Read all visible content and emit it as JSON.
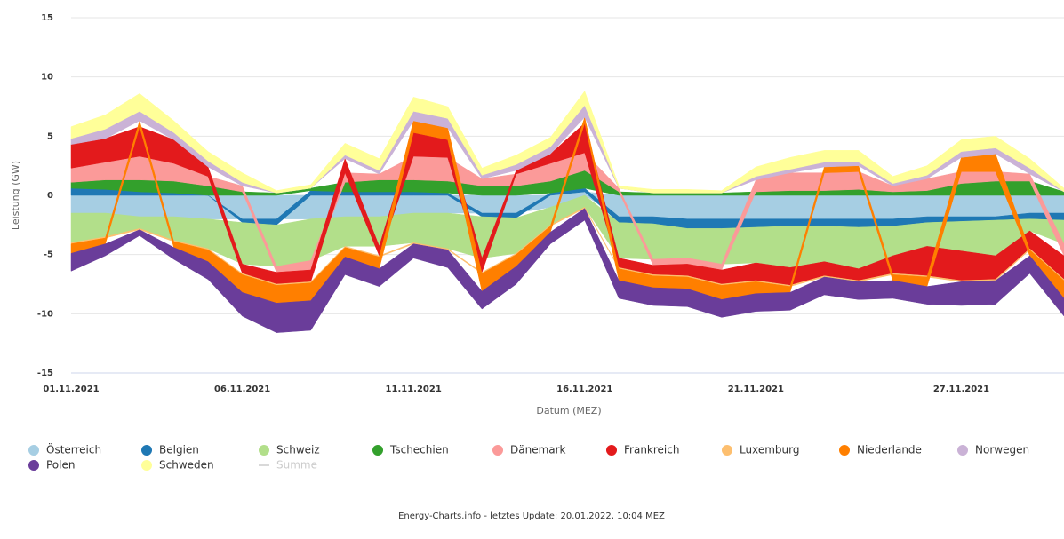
{
  "chart_data": {
    "type": "stacked_area",
    "x_label": "Datum (MEZ)",
    "y_label": "Leistung (GW)",
    "footer": "Energy-Charts.info - letztes Update: 20.01.2022, 10:04 MEZ",
    "x": [
      "01.11.2021",
      "02.11.2021",
      "03.11.2021",
      "04.11.2021",
      "05.11.2021",
      "06.11.2021",
      "07.11.2021",
      "08.11.2021",
      "09.11.2021",
      "10.11.2021",
      "11.11.2021",
      "12.11.2021",
      "13.11.2021",
      "14.11.2021",
      "15.11.2021",
      "16.11.2021",
      "17.11.2021",
      "18.11.2021",
      "19.11.2021",
      "20.11.2021",
      "21.11.2021",
      "22.11.2021",
      "23.11.2021",
      "24.11.2021",
      "25.11.2021",
      "26.11.2021",
      "27.11.2021",
      "28.11.2021",
      "29.11.2021",
      "30.11.2021"
    ],
    "xticks": [
      "01.11.2021",
      "06.11.2021",
      "11.11.2021",
      "16.11.2021",
      "21.11.2021",
      "27.11.2021"
    ],
    "ylim": [
      -15,
      15
    ],
    "yticks": [
      -15,
      -10,
      -5,
      0,
      5,
      10,
      15
    ],
    "grid": true,
    "series": [
      {
        "name": "Österreich",
        "color": "#a6cee3",
        "values": [
          -1.5,
          -1.5,
          -1.8,
          -1.8,
          -2,
          -2,
          -2,
          -2,
          -1.8,
          -1.8,
          -1.5,
          -1.5,
          -1.5,
          -1.5,
          -1,
          0.3,
          -1.8,
          -1.8,
          -2,
          -2,
          -2,
          -2,
          -2,
          -2,
          -2,
          -1.8,
          -1.8,
          -1.8,
          -1.5,
          -1.5
        ]
      },
      {
        "name": "Belgien",
        "color": "#1f78b4",
        "values": [
          0.6,
          0.5,
          0.3,
          0.2,
          0,
          -0.3,
          -0.5,
          0.4,
          0.3,
          0.3,
          0.3,
          0.2,
          -0.3,
          -0.4,
          0.2,
          0.3,
          -0.5,
          -0.6,
          -0.8,
          -0.8,
          -0.7,
          -0.6,
          -0.6,
          -0.7,
          -0.6,
          -0.5,
          -0.4,
          -0.3,
          -0.5,
          -0.6
        ]
      },
      {
        "name": "Schweiz",
        "color": "#b2df8a",
        "values": [
          -2.5,
          -2,
          -1,
          -2,
          -2.5,
          -3.5,
          -3.5,
          -3.5,
          -2.5,
          -2.5,
          -2.5,
          -3,
          -3.5,
          -3,
          -1.5,
          -1,
          -3,
          -3,
          -2.5,
          -3,
          -3,
          -3.5,
          -3,
          -3.5,
          -2.5,
          -2,
          -2.5,
          -3,
          -1,
          -2
        ]
      },
      {
        "name": "Tschechien",
        "color": "#33a02c",
        "values": [
          0.5,
          0.8,
          1,
          1,
          0.8,
          0.3,
          0.2,
          0.2,
          0.8,
          1,
          1,
          1,
          0.8,
          0.8,
          1,
          1.5,
          0.3,
          0.2,
          0.2,
          0.2,
          0.3,
          0.4,
          0.4,
          0.5,
          0.3,
          0.4,
          1,
          1.2,
          1.2,
          0.3
        ]
      },
      {
        "name": "Dänemark",
        "color": "#fb9a99",
        "values": [
          1.2,
          1.5,
          2,
          1.5,
          0.8,
          0.5,
          -0.5,
          -0.8,
          0.8,
          0.5,
          2,
          2,
          0.6,
          1,
          1.5,
          1.5,
          0.3,
          -0.5,
          -0.5,
          -0.5,
          1,
          1.5,
          1.5,
          1.5,
          0.5,
          1,
          1,
          0.8,
          0.6,
          -1
        ]
      },
      {
        "name": "Frankreich",
        "color": "#e31a1c",
        "values": [
          2,
          2,
          2.5,
          2,
          0.8,
          -0.8,
          -1,
          -1,
          1.2,
          -0.8,
          2,
          1.5,
          -1.2,
          0.3,
          0.8,
          2.5,
          -0.8,
          -0.8,
          -1,
          -1.2,
          -1.5,
          -1.5,
          -1.2,
          -1,
          -1.5,
          -2.5,
          -2.5,
          -2,
          -1.5,
          -2
        ]
      },
      {
        "name": "Luxemburg",
        "color": "#fdbf6f",
        "values": [
          -0.1,
          -0.1,
          -0.1,
          -0.1,
          -0.1,
          -0.1,
          -0.1,
          -0.1,
          -0.1,
          -0.1,
          -0.1,
          -0.1,
          -0.1,
          -0.1,
          -0.1,
          -0.1,
          -0.1,
          -0.1,
          -0.1,
          -0.1,
          -0.1,
          -0.1,
          -0.1,
          -0.1,
          -0.1,
          -0.1,
          -0.1,
          -0.1,
          -0.1,
          -0.1
        ]
      },
      {
        "name": "Niederlande",
        "color": "#ff7f00",
        "values": [
          -0.8,
          -0.5,
          0.5,
          -0.5,
          -1,
          -1.5,
          -1.5,
          -1.5,
          -0.8,
          -1,
          1,
          1,
          -1.5,
          -1,
          -0.5,
          0.5,
          -1,
          -1,
          -1,
          -1.2,
          -1,
          -0.5,
          0.5,
          0.5,
          -0.5,
          -0.8,
          1.2,
          1.5,
          -0.5,
          -1.5
        ]
      },
      {
        "name": "Norwegen",
        "color": "#cab2d6",
        "values": [
          0.5,
          0.8,
          0.8,
          0.6,
          0.5,
          0.3,
          0,
          0,
          0.3,
          0.3,
          0.8,
          0.8,
          0.3,
          0.5,
          0.6,
          1,
          0,
          0,
          0,
          0,
          0.3,
          0.3,
          0.4,
          0.3,
          0.2,
          0.3,
          0.5,
          0.5,
          0.5,
          0
        ]
      },
      {
        "name": "Polen",
        "color": "#6a3d9a",
        "values": [
          -1.5,
          -1,
          -0.5,
          -1,
          -1.5,
          -2,
          -2.5,
          -2.5,
          -1.5,
          -1.5,
          -1.2,
          -1.5,
          -1.5,
          -1.5,
          -1,
          -1,
          -1.5,
          -1.5,
          -1.5,
          -1.5,
          -1.5,
          -1.5,
          -1.5,
          -1.5,
          -1.5,
          -1.5,
          -2,
          -2,
          -1.5,
          -1.5
        ]
      },
      {
        "name": "Schweden",
        "color": "#ffff99",
        "values": [
          1,
          1.2,
          1.5,
          1,
          0.8,
          0.8,
          0.2,
          0.3,
          1,
          1,
          1.2,
          1,
          0.6,
          0.8,
          0.8,
          1.2,
          0.2,
          0.3,
          0.3,
          0.2,
          0.8,
          1,
          1,
          1,
          0.6,
          0.8,
          1,
          1,
          0.8,
          0.3
        ]
      }
    ],
    "hidden_series": [
      {
        "name": "Summe",
        "color": "#cccccc"
      }
    ]
  }
}
